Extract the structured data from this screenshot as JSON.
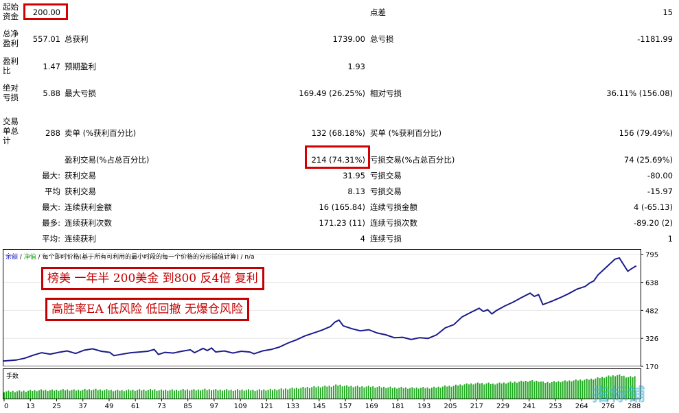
{
  "report": {
    "initial_deposit": {
      "label_a": "起始",
      "label_b": "资金",
      "value": "200.00"
    },
    "spread": {
      "label": "点差",
      "value": "15"
    },
    "total_net_profit": {
      "label_a": "总净",
      "label_b": "盈利",
      "value": "557.01"
    },
    "gross_profit": {
      "label": "总获利",
      "value": "1739.00"
    },
    "gross_loss": {
      "label": "总亏损",
      "value": "-1181.99"
    },
    "profit_factor": {
      "label_a": "盈利",
      "label_b": "比",
      "value": "1.47"
    },
    "expected_payoff": {
      "label": "预期盈利",
      "value": "1.93"
    },
    "absolute_drawdown": {
      "label_a": "绝对",
      "label_b": "亏损",
      "value": "5.88"
    },
    "maximal_drawdown": {
      "label": "最大亏损",
      "value": "169.49 (26.25%)"
    },
    "relative_drawdown": {
      "label": "相对亏损",
      "value": "36.11% (156.08)"
    },
    "total_trades": {
      "label_a": "交易",
      "label_b": "单总",
      "label_c": "计",
      "value": "288"
    },
    "short_positions": {
      "label": "卖单 (%获利百分比)",
      "value": "132 (68.18%)"
    },
    "long_positions": {
      "label": "买单 (%获利百分比)",
      "value": "156 (79.49%)"
    },
    "profit_trades": {
      "label": "盈利交易(%占总百分比)",
      "value": "214 (74.31%)"
    },
    "loss_trades": {
      "label": "亏损交易(%占总百分比)",
      "value": "74 (25.69%)"
    },
    "largest": {
      "prefix": "最大:",
      "profit_label": "获利交易",
      "profit_value": "31.95",
      "loss_label": "亏损交易",
      "loss_value": "-80.00"
    },
    "average": {
      "prefix": "平均",
      "profit_label": "获利交易",
      "profit_value": "8.13",
      "loss_label": "亏损交易",
      "loss_value": "-15.97"
    },
    "max_consecutive": {
      "prefix": "最大:",
      "win_label": "连续获利金额",
      "win_value": "16 (165.84)",
      "loss_label": "连续亏损金额",
      "loss_value": "4 (-65.13)"
    },
    "max_consecutive_count": {
      "prefix": "最多:",
      "win_label": "连续获利次数",
      "win_value": "171.23 (11)",
      "loss_label": "连续亏损次数",
      "loss_value": "-89.20 (2)"
    },
    "avg_consecutive": {
      "prefix": "平均:",
      "win_label": "连续获利",
      "win_value": "4",
      "loss_label": "连续亏损",
      "loss_value": "1"
    }
  },
  "legend": {
    "balance": "余额",
    "sep1": " / ",
    "equity": "净值",
    "sep2": " / ",
    "model": "每个即时价格(基于所有可利用的最小时段的每一个价格的分形插值计算)",
    "sep3": " / ",
    "na": "n/a"
  },
  "annotations": {
    "line1": "榜美 一年半 200美金 到800 反4倍 复利",
    "line2": "高胜率EA 低风险 低回撤 无爆仓风险"
  },
  "volume_label": "手数",
  "watermark": "指标铺",
  "colors": {
    "balance": "#1a1a8c",
    "volume": "#22aa22",
    "highlight": "#d40000",
    "legend_balance": "#0000cc",
    "legend_equity": "#009900"
  },
  "chart_data": {
    "type": "line",
    "yticks": [
      "795",
      "638",
      "482",
      "326",
      "170"
    ],
    "ytick_values": [
      795,
      638,
      482,
      326,
      170
    ],
    "ylim": [
      170,
      820
    ],
    "xticks": [
      "0",
      "13",
      "25",
      "37",
      "49",
      "61",
      "73",
      "85",
      "97",
      "109",
      "121",
      "133",
      "145",
      "157",
      "169",
      "181",
      "193",
      "205",
      "217",
      "229",
      "241",
      "253",
      "264",
      "276",
      "288"
    ],
    "xlim": [
      0,
      300
    ],
    "series": [
      {
        "values": [
          [
            0,
            200
          ],
          [
            6,
            205
          ],
          [
            10,
            215
          ],
          [
            14,
            232
          ],
          [
            18,
            246
          ],
          [
            22,
            238
          ],
          [
            26,
            248
          ],
          [
            30,
            256
          ],
          [
            34,
            242
          ],
          [
            38,
            260
          ],
          [
            42,
            268
          ],
          [
            46,
            254
          ],
          [
            50,
            248
          ],
          [
            52,
            230
          ],
          [
            56,
            238
          ],
          [
            60,
            246
          ],
          [
            64,
            250
          ],
          [
            68,
            254
          ],
          [
            71,
            264
          ],
          [
            73,
            236
          ],
          [
            76,
            248
          ],
          [
            80,
            244
          ],
          [
            84,
            254
          ],
          [
            88,
            262
          ],
          [
            90,
            246
          ],
          [
            94,
            270
          ],
          [
            96,
            258
          ],
          [
            98,
            272
          ],
          [
            100,
            250
          ],
          [
            104,
            256
          ],
          [
            108,
            244
          ],
          [
            112,
            254
          ],
          [
            116,
            250
          ],
          [
            118,
            240
          ],
          [
            122,
            256
          ],
          [
            126,
            264
          ],
          [
            130,
            278
          ],
          [
            134,
            300
          ],
          [
            138,
            318
          ],
          [
            142,
            340
          ],
          [
            146,
            356
          ],
          [
            150,
            372
          ],
          [
            154,
            392
          ],
          [
            156,
            416
          ],
          [
            158,
            428
          ],
          [
            160,
            396
          ],
          [
            164,
            380
          ],
          [
            168,
            368
          ],
          [
            172,
            374
          ],
          [
            176,
            356
          ],
          [
            180,
            346
          ],
          [
            184,
            330
          ],
          [
            188,
            332
          ],
          [
            192,
            320
          ],
          [
            196,
            330
          ],
          [
            200,
            326
          ],
          [
            204,
            346
          ],
          [
            208,
            384
          ],
          [
            212,
            402
          ],
          [
            216,
            446
          ],
          [
            220,
            470
          ],
          [
            224,
            494
          ],
          [
            226,
            476
          ],
          [
            228,
            486
          ],
          [
            230,
            462
          ],
          [
            232,
            480
          ],
          [
            236,
            506
          ],
          [
            240,
            528
          ],
          [
            244,
            554
          ],
          [
            248,
            578
          ],
          [
            250,
            560
          ],
          [
            252,
            570
          ],
          [
            254,
            514
          ],
          [
            258,
            532
          ],
          [
            262,
            552
          ],
          [
            266,
            574
          ],
          [
            270,
            600
          ],
          [
            274,
            616
          ],
          [
            276,
            634
          ],
          [
            278,
            646
          ],
          [
            280,
            680
          ],
          [
            284,
            724
          ],
          [
            288,
            768
          ],
          [
            290,
            774
          ],
          [
            294,
            700
          ],
          [
            296,
            716
          ],
          [
            298,
            730
          ]
        ]
      }
    ]
  }
}
